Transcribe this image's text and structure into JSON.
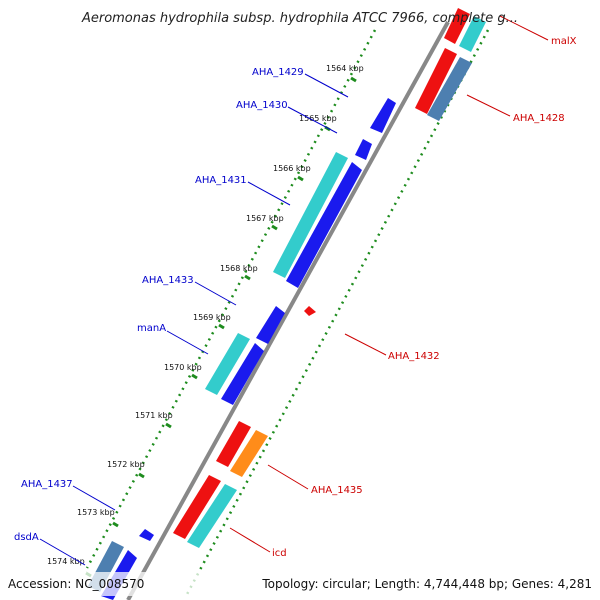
{
  "title": "Aeromonas hydrophila subsp. hydrophila ATCC 7966, complete g...",
  "footer": {
    "accession": "Accession: NC_008570",
    "topology": "Topology: circular; Length: 4,744,448 bp; Genes: 4,281"
  },
  "colors": {
    "backbone": "#888888",
    "tick": "#1e8c1e",
    "forward_label": "#0000cc",
    "reverse_label": "#cc0000",
    "blue": "#1a1aee",
    "cyan": "#33cccc",
    "red": "#ee1111",
    "steelblue": "#4d7fb0",
    "orange": "#ff8c1a"
  },
  "ticks": [
    {
      "label": "1564 kbp"
    },
    {
      "label": "1565 kbp"
    },
    {
      "label": "1566 kbp"
    },
    {
      "label": "1567 kbp"
    },
    {
      "label": "1568 kbp"
    },
    {
      "label": "1569 kbp"
    },
    {
      "label": "1570 kbp"
    },
    {
      "label": "1571 kbp"
    },
    {
      "label": "1572 kbp"
    },
    {
      "label": "1573 kbp"
    },
    {
      "label": "1574 kbp"
    }
  ],
  "forward_labels": [
    {
      "text": "AHA_1429"
    },
    {
      "text": "AHA_1430"
    },
    {
      "text": "AHA_1431"
    },
    {
      "text": "AHA_1433"
    },
    {
      "text": "manA"
    },
    {
      "text": "AHA_1437"
    },
    {
      "text": "dsdA"
    }
  ],
  "reverse_labels": [
    {
      "text": "malX"
    },
    {
      "text": "AHA_1428"
    },
    {
      "text": "AHA_1432"
    },
    {
      "text": "AHA_1435"
    },
    {
      "text": "icd"
    }
  ]
}
